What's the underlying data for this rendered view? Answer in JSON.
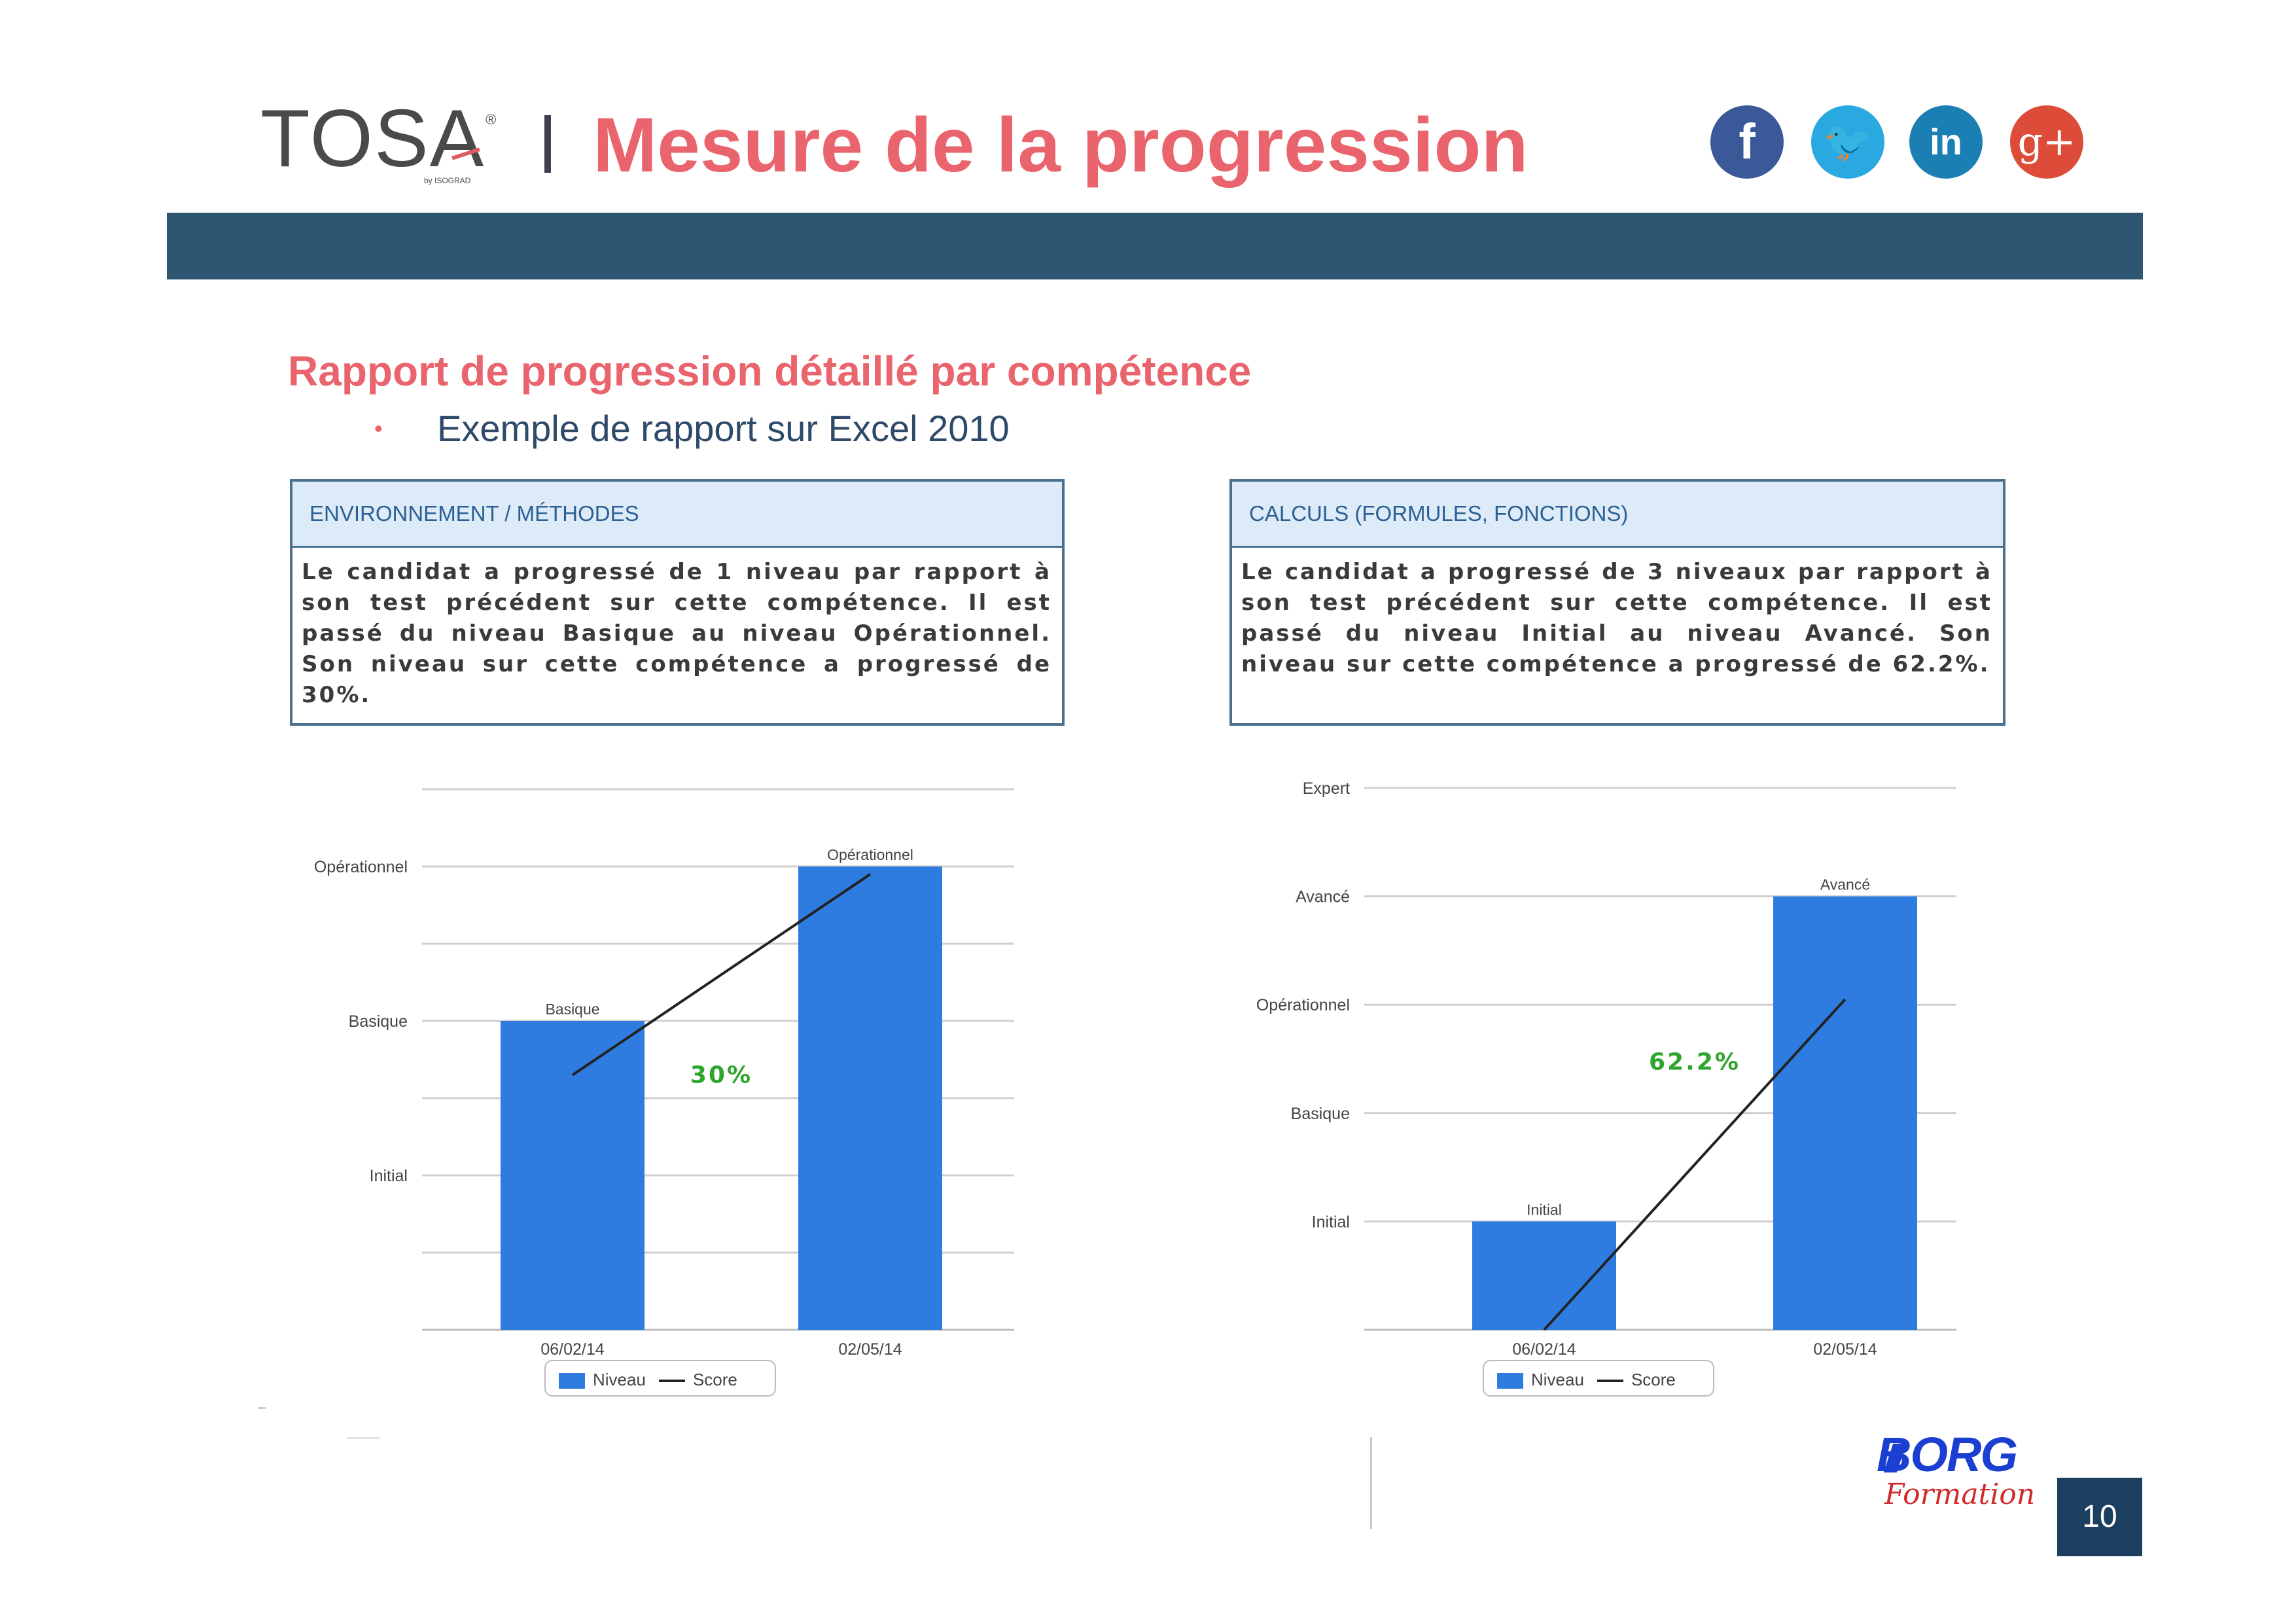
{
  "header": {
    "logo": "TOSA",
    "logo_mark": "®",
    "logo_sub": "by ISOGRAD",
    "title": "Mesure de la progression",
    "social_icons": [
      "facebook-icon",
      "twitter-icon",
      "linkedin-icon",
      "google-plus-icon"
    ],
    "social_glyphs": [
      "f",
      "🐦",
      "in",
      "g+"
    ]
  },
  "content": {
    "heading": "Rapport de progression détaillé par compétence",
    "bullet_symbol": "•",
    "bullet": "Exemple de rapport sur Excel 2010"
  },
  "reports": [
    {
      "header": "ENVIRONNEMENT / MÉTHODES",
      "text": "Le candidat a progressé de 1 niveau par rapport à son test précédent sur cette compétence. Il est passé du niveau Basique au niveau Opérationnel. Son niveau sur cette compétence a progressé de 30%."
    },
    {
      "header": "CALCULS (FORMULES, FONCTIONS)",
      "text": "Le candidat a progressé de 3 niveaux par rapport à son test précédent sur cette compétence. Il est passé du niveau Initial au niveau Avancé. Son niveau sur cette compétence a progressé de 62.2%."
    }
  ],
  "chart_data": [
    {
      "type": "bar",
      "categories": [
        "06/02/14",
        "02/05/14"
      ],
      "y_levels": [
        "Initial",
        "Basique",
        "Opérationnel"
      ],
      "series": [
        {
          "name": "Niveau",
          "type": "bar",
          "values": [
            2,
            3
          ],
          "labels": [
            "Basique",
            "Opérationnel"
          ]
        },
        {
          "name": "Score",
          "type": "line",
          "values": [
            1.65,
            2.95
          ]
        }
      ],
      "annotation": "30%",
      "ylim": [
        0,
        3.5
      ],
      "grid": true,
      "legend": "bottom",
      "colors": {
        "bar": "#2f7ce0",
        "line": "#222222"
      }
    },
    {
      "type": "bar",
      "categories": [
        "06/02/14",
        "02/05/14"
      ],
      "y_levels": [
        "Initial",
        "Basique",
        "Opérationnel",
        "Avancé",
        "Expert"
      ],
      "series": [
        {
          "name": "Niveau",
          "type": "bar",
          "values": [
            1,
            4
          ],
          "labels": [
            "Initial",
            "Avancé"
          ]
        },
        {
          "name": "Score",
          "type": "line",
          "values": [
            0,
            3.05
          ]
        }
      ],
      "annotation": "62.2%",
      "ylim": [
        0,
        5
      ],
      "grid": true,
      "legend": "bottom",
      "colors": {
        "bar": "#2f7ce0",
        "line": "#222222"
      }
    }
  ],
  "footer": {
    "brand": "BORG",
    "brand_sub": "Formation",
    "page_number": "10"
  }
}
